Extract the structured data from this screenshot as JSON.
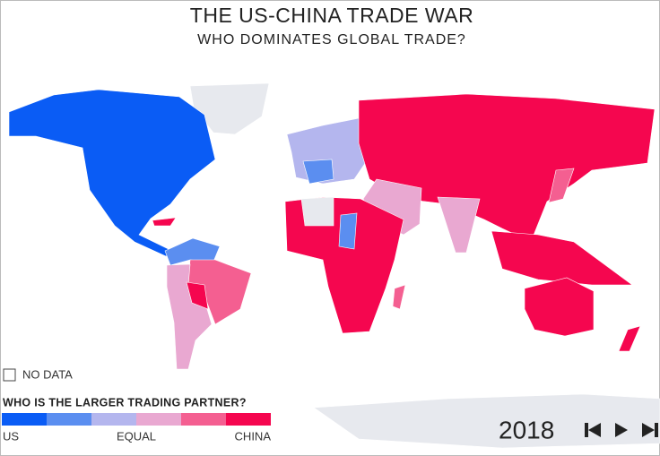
{
  "header": {
    "title": "THE US-CHINA TRADE WAR",
    "subtitle": "WHO DOMINATES GLOBAL TRADE?"
  },
  "no_data": "NO DATA",
  "legend": {
    "title": "WHO IS THE LARGER TRADING PARTNER?",
    "colors": [
      "#0a5cf5",
      "#5b8ef0",
      "#b4b6ee",
      "#e9a8d1",
      "#f45f91",
      "#f5064f"
    ],
    "labels": [
      "US",
      "EQUAL",
      "CHINA"
    ]
  },
  "year": "2018"
}
